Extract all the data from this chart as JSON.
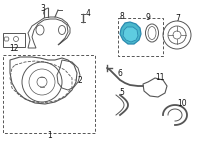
{
  "bg_color": "#ffffff",
  "line_color": "#555555",
  "highlight_fill": "#4ab8cc",
  "highlight_edge": "#2a8ab0",
  "highlight_fill2": "#5ecce0",
  "figsize": [
    2.0,
    1.47
  ],
  "dpi": 100
}
